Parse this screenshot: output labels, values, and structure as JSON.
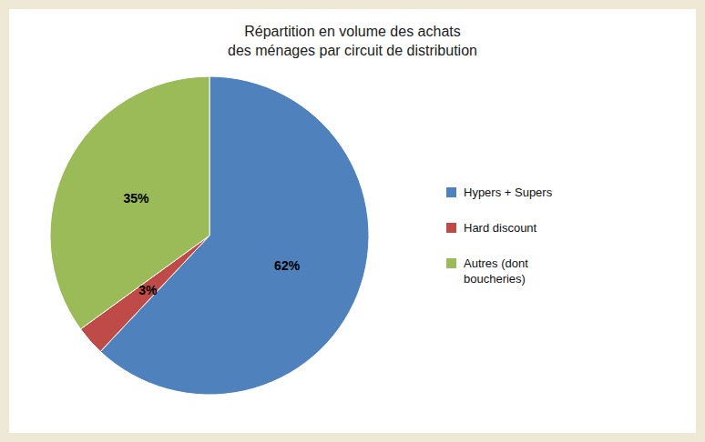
{
  "chart_data": {
    "type": "pie",
    "title": "Répartition en volume des achats\ndes ménages par circuit de distribution",
    "categories": [
      "Hypers + Supers",
      "Hard discount",
      "Autres (dont\nboucheries)"
    ],
    "values": [
      62,
      3,
      35
    ],
    "value_labels": [
      "62%",
      "3%",
      "35%"
    ],
    "colors": [
      "#4F81BD",
      "#BE4B48",
      "#9BBB59"
    ],
    "data_labels": true,
    "legend": "right"
  }
}
